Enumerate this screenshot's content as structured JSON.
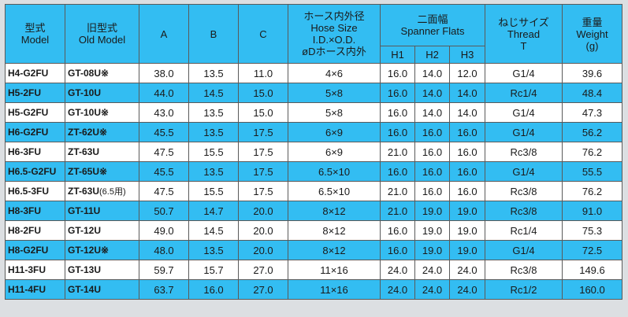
{
  "headers": {
    "model": [
      "型式",
      "Model"
    ],
    "old_model": [
      "旧型式",
      "Old Model"
    ],
    "a": "A",
    "b": "B",
    "c": "C",
    "hose": [
      "ホース内外径",
      "Hose Size",
      "I.D.×O.D.",
      "øDホース内外"
    ],
    "spanner": [
      "二面幅",
      "Spanner Flats"
    ],
    "h1": "H1",
    "h2": "H2",
    "h3": "H3",
    "thread": [
      "ねじサイズ",
      "Thread",
      "T"
    ],
    "weight": [
      "重量",
      "Weight",
      "(g)"
    ]
  },
  "rows": [
    {
      "model": "H4-G2FU",
      "old": "GT-08U",
      "mark": "※",
      "sub": "",
      "a": "38.0",
      "b": "13.5",
      "c": "11.0",
      "hose": "4×6",
      "h1": "16.0",
      "h2": "14.0",
      "h3": "12.0",
      "thread": "G1/4",
      "weight": "39.6"
    },
    {
      "model": "H5-2FU",
      "old": "GT-10U",
      "mark": "",
      "sub": "",
      "a": "44.0",
      "b": "14.5",
      "c": "15.0",
      "hose": "5×8",
      "h1": "16.0",
      "h2": "14.0",
      "h3": "14.0",
      "thread": "Rc1/4",
      "weight": "48.4"
    },
    {
      "model": "H5-G2FU",
      "old": "GT-10U",
      "mark": "※",
      "sub": "",
      "a": "43.0",
      "b": "13.5",
      "c": "15.0",
      "hose": "5×8",
      "h1": "16.0",
      "h2": "14.0",
      "h3": "14.0",
      "thread": "G1/4",
      "weight": "47.3"
    },
    {
      "model": "H6-G2FU",
      "old": "ZT-62U",
      "mark": "※",
      "sub": "",
      "a": "45.5",
      "b": "13.5",
      "c": "17.5",
      "hose": "6×9",
      "h1": "16.0",
      "h2": "16.0",
      "h3": "16.0",
      "thread": "G1/4",
      "weight": "56.2"
    },
    {
      "model": "H6-3FU",
      "old": "ZT-63U",
      "mark": "",
      "sub": "",
      "a": "47.5",
      "b": "15.5",
      "c": "17.5",
      "hose": "6×9",
      "h1": "21.0",
      "h2": "16.0",
      "h3": "16.0",
      "thread": "Rc3/8",
      "weight": "76.2"
    },
    {
      "model": "H6.5-G2FU",
      "old": "ZT-65U",
      "mark": "※",
      "sub": "",
      "a": "45.5",
      "b": "13.5",
      "c": "17.5",
      "hose": "6.5×10",
      "h1": "16.0",
      "h2": "16.0",
      "h3": "16.0",
      "thread": "G1/4",
      "weight": "55.5"
    },
    {
      "model": "H6.5-3FU",
      "old": "ZT-63U",
      "mark": "",
      "sub": "(6.5用)",
      "a": "47.5",
      "b": "15.5",
      "c": "17.5",
      "hose": "6.5×10",
      "h1": "21.0",
      "h2": "16.0",
      "h3": "16.0",
      "thread": "Rc3/8",
      "weight": "76.2"
    },
    {
      "model": "H8-3FU",
      "old": "GT-11U",
      "mark": "",
      "sub": "",
      "a": "50.7",
      "b": "14.7",
      "c": "20.0",
      "hose": "8×12",
      "h1": "21.0",
      "h2": "19.0",
      "h3": "19.0",
      "thread": "Rc3/8",
      "weight": "91.0"
    },
    {
      "model": "H8-2FU",
      "old": "GT-12U",
      "mark": "",
      "sub": "",
      "a": "49.0",
      "b": "14.5",
      "c": "20.0",
      "hose": "8×12",
      "h1": "16.0",
      "h2": "19.0",
      "h3": "19.0",
      "thread": "Rc1/4",
      "weight": "75.3"
    },
    {
      "model": "H8-G2FU",
      "old": "GT-12U",
      "mark": "※",
      "sub": "",
      "a": "48.0",
      "b": "13.5",
      "c": "20.0",
      "hose": "8×12",
      "h1": "16.0",
      "h2": "19.0",
      "h3": "19.0",
      "thread": "G1/4",
      "weight": "72.5"
    },
    {
      "model": "H11-3FU",
      "old": "GT-13U",
      "mark": "",
      "sub": "",
      "a": "59.7",
      "b": "15.7",
      "c": "27.0",
      "hose": "11×16",
      "h1": "24.0",
      "h2": "24.0",
      "h3": "24.0",
      "thread": "Rc3/8",
      "weight": "149.6"
    },
    {
      "model": "H11-4FU",
      "old": "GT-14U",
      "mark": "",
      "sub": "",
      "a": "63.7",
      "b": "16.0",
      "c": "27.0",
      "hose": "11×16",
      "h1": "24.0",
      "h2": "24.0",
      "h3": "24.0",
      "thread": "Rc1/2",
      "weight": "160.0"
    }
  ]
}
